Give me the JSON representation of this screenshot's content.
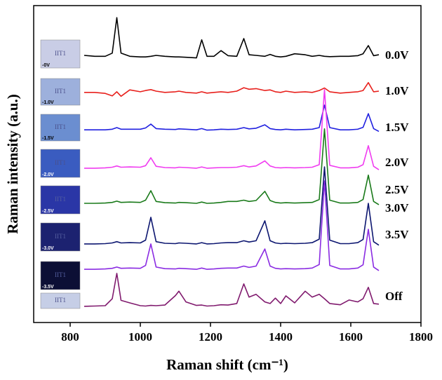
{
  "chart_data": {
    "type": "line",
    "xlabel": "Raman shift (cm⁻¹)",
    "ylabel": "Raman intensity (a.u.)",
    "xlim": [
      696,
      1800
    ],
    "ylim": [
      0,
      100
    ],
    "xticks": [
      800,
      1000,
      1200,
      1400,
      1600,
      1800
    ],
    "x": [
      840,
      870,
      900,
      920,
      933,
      945,
      970,
      1000,
      1015,
      1030,
      1045,
      1070,
      1100,
      1110,
      1130,
      1160,
      1175,
      1190,
      1210,
      1230,
      1250,
      1275,
      1295,
      1310,
      1330,
      1355,
      1370,
      1385,
      1400,
      1415,
      1440,
      1470,
      1490,
      1510,
      1525,
      1540,
      1570,
      1595,
      1620,
      1635,
      1650,
      1665,
      1680
    ],
    "series": [
      {
        "name": "0.0V",
        "color": "#000000",
        "values": [
          84.3,
          84,
          84,
          85,
          96.2,
          85,
          84,
          83.8,
          83.8,
          84,
          84.3,
          84,
          83.8,
          83.8,
          83.7,
          83.5,
          89.2,
          84,
          84,
          85.8,
          84.2,
          84,
          89.6,
          84.5,
          84.3,
          84,
          84.6,
          84,
          83.8,
          84,
          84.8,
          84.5,
          84,
          84.3,
          84,
          83.9,
          84,
          84,
          84.2,
          84.8,
          87.4,
          84.2,
          84.5
        ]
      },
      {
        "name": "1.0V",
        "color": "#e8201c",
        "values": [
          72.6,
          72.6,
          72.3,
          71.5,
          72.8,
          71.4,
          73.4,
          72.8,
          73.2,
          73.5,
          73,
          72.6,
          72.8,
          73,
          72.6,
          72.4,
          72.8,
          72.4,
          72.6,
          72.8,
          72.6,
          73,
          74.1,
          73.6,
          73.8,
          73.2,
          73.4,
          72.8,
          72.6,
          73,
          72.6,
          72.8,
          72.6,
          73.2,
          74,
          72.8,
          72.4,
          72.6,
          72.8,
          73.2,
          75.7,
          72.8,
          73
        ]
      },
      {
        "name": "1.5V",
        "color": "#1f1fe0",
        "values": [
          60.8,
          60.8,
          60.8,
          61,
          61.5,
          61,
          61,
          61,
          61.4,
          62.6,
          61.2,
          61,
          60.9,
          61.1,
          61,
          60.8,
          61.2,
          60.7,
          60.8,
          61,
          60.9,
          61,
          61.5,
          61.1,
          61.3,
          62.4,
          61.2,
          60.9,
          60.8,
          61,
          60.8,
          60.9,
          61,
          61.5,
          68.6,
          61.5,
          60.8,
          60.8,
          61,
          61.6,
          65.9,
          61.2,
          60.3
        ]
      },
      {
        "name": "2.0V",
        "color": "#f03cf0",
        "values": [
          48.7,
          48.7,
          48.8,
          49,
          49.4,
          49,
          49.1,
          49,
          49.5,
          52,
          49.3,
          48.9,
          48.8,
          49,
          48.9,
          48.7,
          49.1,
          48.7,
          48.8,
          48.9,
          48.9,
          49,
          49.5,
          49.1,
          49.4,
          51,
          49.4,
          48.9,
          48.8,
          48.9,
          48.8,
          48.9,
          49,
          49.8,
          73.5,
          49.6,
          48.8,
          48.8,
          49,
          49.8,
          55.8,
          49.3,
          48.2
        ]
      },
      {
        "name": "2.5V",
        "color": "#1a7a1a",
        "values": [
          37.6,
          37.6,
          37.7,
          37.9,
          38.3,
          37.9,
          38,
          37.9,
          38.6,
          41.6,
          38.2,
          37.8,
          37.7,
          37.9,
          37.8,
          37.6,
          38,
          37.6,
          37.7,
          37.9,
          38.2,
          38.2,
          38.6,
          38.2,
          38.5,
          41.4,
          38.5,
          37.9,
          37.7,
          37.8,
          37.7,
          37.8,
          37.9,
          38.8,
          61.1,
          38.6,
          37.7,
          37.7,
          37.9,
          38.8,
          46.5,
          38.2,
          37.2
        ]
      },
      {
        "name": "3.0V",
        "color": "#0c1670",
        "values": [
          24.8,
          24.8,
          24.9,
          25.1,
          25.5,
          25.1,
          25.2,
          25.1,
          26,
          33.2,
          25.5,
          25,
          24.9,
          25.1,
          25,
          24.8,
          25.2,
          24.8,
          24.9,
          25.1,
          25.2,
          25.2,
          25.8,
          25.4,
          25.8,
          32.1,
          25.8,
          25.1,
          24.9,
          25,
          24.9,
          25,
          25.2,
          26.3,
          49.1,
          26,
          24.9,
          24.9,
          25.2,
          26.2,
          37.6,
          25.5,
          24.4
        ]
      },
      {
        "name": "3.5V",
        "color": "#8a2be2",
        "values": [
          16.8,
          16.8,
          16.9,
          17.1,
          17.5,
          17.1,
          17.2,
          17.1,
          18,
          24.8,
          17.5,
          17,
          16.9,
          17.1,
          17,
          16.8,
          17.2,
          16.8,
          16.9,
          17.1,
          17.2,
          17.2,
          17.8,
          17.4,
          17.8,
          23.2,
          17.8,
          17.1,
          16.9,
          17,
          16.9,
          17,
          17.2,
          18.3,
          44.7,
          18,
          16.9,
          16.9,
          17.2,
          18.2,
          29.4,
          17.5,
          16.4
        ]
      },
      {
        "name": "Off",
        "color": "#801a6e",
        "values": [
          5.1,
          5.2,
          5.3,
          7.5,
          15.5,
          7,
          6.2,
          5.3,
          5.2,
          5.4,
          5.3,
          5.5,
          8.5,
          9.9,
          6.5,
          5.4,
          5.5,
          5.2,
          5.3,
          5.6,
          5.5,
          6,
          12.2,
          8,
          8.9,
          6.5,
          6,
          7.7,
          6,
          8.4,
          6.2,
          9.9,
          8,
          8.9,
          7.5,
          6,
          5.6,
          7.1,
          6.5,
          7.5,
          11.1,
          6,
          5.8
        ]
      }
    ]
  },
  "insets": [
    {
      "caption": "-0V",
      "text": "IIT1",
      "color": "#c9cde6"
    },
    {
      "caption": "-1.0V",
      "text": "IIT1",
      "color": "#9db0dc"
    },
    {
      "caption": "-1.5V",
      "text": "IIT1",
      "color": "#6b8ed0"
    },
    {
      "caption": "-2.0V",
      "text": "IIT1",
      "color": "#3a5cc0"
    },
    {
      "caption": "-2.5V",
      "text": "IIT1",
      "color": "#2a36a6"
    },
    {
      "caption": "-3.0V",
      "text": "IIT1",
      "color": "#1c2270"
    },
    {
      "caption": "-3.5V",
      "text": "IIT1",
      "color": "#0c0f35"
    },
    {
      "text": "IIT1",
      "color": "#c6cee6"
    }
  ]
}
